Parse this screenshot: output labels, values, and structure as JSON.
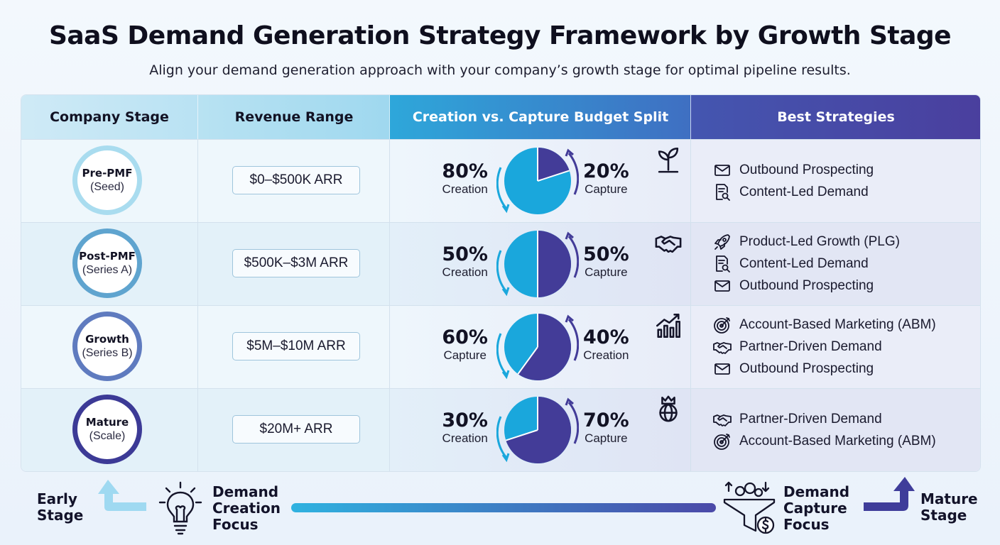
{
  "header": {
    "title": "SaaS Demand Generation Strategy Framework by Growth Stage",
    "subtitle": "Align your demand generation approach with your company’s growth stage for optimal pipeline results."
  },
  "columns": [
    "Company Stage",
    "Revenue Range",
    "Creation vs. Capture Budget Split",
    "Best Strategies"
  ],
  "rows": [
    {
      "stage": "Pre-PMF",
      "round": "(Seed)",
      "ring_color": "#a9dcef",
      "revenue": "$0–$500K ARR",
      "left_pct": "80%",
      "left_label": "Creation",
      "right_pct": "20%",
      "right_label": "Capture",
      "creation_share": 80,
      "stage_icon": "sprout-icon",
      "strategies": [
        {
          "icon": "mail-icon",
          "label": "Outbound Prospecting"
        },
        {
          "icon": "document-search-icon",
          "label": "Content-Led Demand"
        }
      ]
    },
    {
      "stage": "Post-PMF",
      "round": "(Series A)",
      "ring_color": "#5fa4cf",
      "revenue": "$500K–$3M ARR",
      "left_pct": "50%",
      "left_label": "Creation",
      "right_pct": "50%",
      "right_label": "Capture",
      "creation_share": 50,
      "stage_icon": "handshake-icon",
      "strategies": [
        {
          "icon": "rocket-icon",
          "label": "Product-Led Growth (PLG)"
        },
        {
          "icon": "document-search-icon",
          "label": "Content-Led Demand"
        },
        {
          "icon": "mail-icon",
          "label": "Outbound Prospecting"
        }
      ]
    },
    {
      "stage": "Growth",
      "round": "(Series B)",
      "ring_color": "#5f7bbf",
      "revenue": "$5M–$10M ARR",
      "left_pct": "60%",
      "left_label": "Capture",
      "right_pct": "40%",
      "right_label": "Creation",
      "creation_share": 40,
      "stage_icon": "growth-chart-icon",
      "strategies": [
        {
          "icon": "target-icon",
          "label": "Account-Based Marketing (ABM)"
        },
        {
          "icon": "handshake-icon",
          "label": "Partner-Driven Demand"
        },
        {
          "icon": "mail-icon",
          "label": "Outbound Prospecting"
        }
      ]
    },
    {
      "stage": "Mature",
      "round": "(Scale)",
      "ring_color": "#3c3a96",
      "revenue": "$20M+ ARR",
      "left_pct": "30%",
      "left_label": "Creation",
      "right_pct": "70%",
      "right_label": "Capture",
      "creation_share": 30,
      "stage_icon": "crown-globe-icon",
      "strategies": [
        {
          "icon": "handshake-icon",
          "label": "Partner-Driven Demand"
        },
        {
          "icon": "target-icon",
          "label": "Account-Based Marketing (ABM)"
        }
      ]
    }
  ],
  "colors": {
    "creation": "#1aa7dc",
    "capture": "#433c98"
  },
  "footer": {
    "early_line1": "Early",
    "early_line2": "Stage",
    "creation_line1": "Demand",
    "creation_line2": "Creation",
    "creation_line3": "Focus",
    "capture_line1": "Demand",
    "capture_line2": "Capture",
    "capture_line3": "Focus",
    "mature_line1": "Mature",
    "mature_line2": "Stage"
  }
}
